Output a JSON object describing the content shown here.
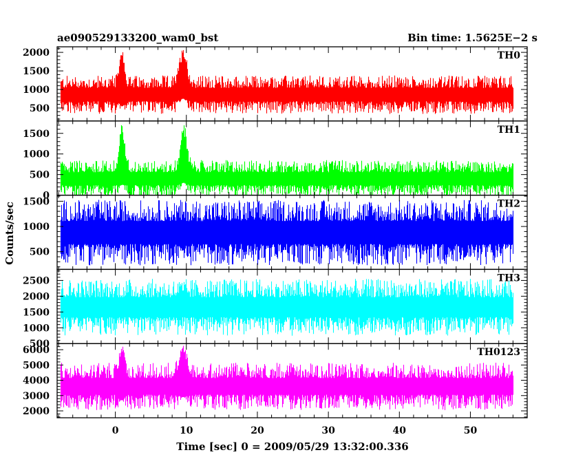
{
  "header": {
    "title": "ae090529133200_wam0_bst",
    "bin_time": "Bin time: 1.5625E−2 s"
  },
  "chart_data": {
    "type": "line",
    "title": "ae090529133200_wam0_bst",
    "subtitle": "Bin time: 1.5625E−2 s",
    "xlabel": "Time [sec] 0 = 2009/05/29 13:32:00.336",
    "ylabel": "Counts/sec",
    "xlim": [
      -8.2,
      58.0
    ],
    "data_range": [
      -7.7,
      56.0
    ],
    "bin_seconds": 0.015625,
    "x_ticks": [
      0,
      10,
      20,
      30,
      40,
      50
    ],
    "x_tick_labels": [
      "0",
      "10",
      "20",
      "30",
      "40",
      "50"
    ],
    "grid": false,
    "panels": [
      {
        "name": "TH0",
        "color": "#ff0000",
        "ylim": [
          150,
          2150
        ],
        "y_ticks": [
          500,
          1000,
          1500,
          2000
        ],
        "y_tick_labels": [
          "500",
          "1000",
          "1500",
          "2000"
        ],
        "baseline": 860,
        "spread": 520,
        "features": [
          {
            "label": "burst peak",
            "t": 0.9,
            "peak": 2150,
            "floor": 550,
            "width": 0.45
          },
          {
            "label": "burst peak",
            "t": 9.5,
            "peak": 2150,
            "floor": 750,
            "width": 0.7
          }
        ]
      },
      {
        "name": "TH1",
        "color": "#00ff00",
        "ylim": [
          0,
          1800
        ],
        "y_ticks": [
          0,
          500,
          1000,
          1500
        ],
        "y_tick_labels": [
          "0",
          "500",
          "1000",
          "1500"
        ],
        "baseline": 400,
        "spread": 450,
        "features": [
          {
            "label": "burst peak",
            "t": 0.9,
            "peak": 1750,
            "floor": 250,
            "width": 0.5
          },
          {
            "label": "burst peak",
            "t": 9.6,
            "peak": 1800,
            "floor": 300,
            "width": 0.6
          }
        ]
      },
      {
        "name": "TH2",
        "color": "#0000ff",
        "ylim": [
          150,
          1620
        ],
        "y_ticks": [
          500,
          1000,
          1500
        ],
        "y_tick_labels": [
          "500",
          "1000",
          "1500"
        ],
        "baseline": 880,
        "spread": 650,
        "features": []
      },
      {
        "name": "TH3",
        "color": "#00ffff",
        "ylim": [
          500,
          2850
        ],
        "y_ticks": [
          500,
          1000,
          1500,
          2000,
          2500
        ],
        "y_tick_labels": [
          "500",
          "1000",
          "1500",
          "2000",
          "2500"
        ],
        "baseline": 1650,
        "spread": 900,
        "features": []
      },
      {
        "name": "TH0123",
        "color": "#ff00ff",
        "ylim": [
          1550,
          6400
        ],
        "y_ticks": [
          2000,
          3000,
          4000,
          5000,
          6000
        ],
        "y_tick_labels": [
          "2000",
          "3000",
          "4000",
          "5000",
          "6000"
        ],
        "baseline": 3600,
        "spread": 1550,
        "features": [
          {
            "label": "burst peak",
            "t": 0.9,
            "peak": 6300,
            "floor": 2700,
            "width": 0.5
          },
          {
            "label": "burst peak",
            "t": 9.5,
            "peak": 6400,
            "floor": 2900,
            "width": 0.7
          }
        ]
      }
    ]
  }
}
